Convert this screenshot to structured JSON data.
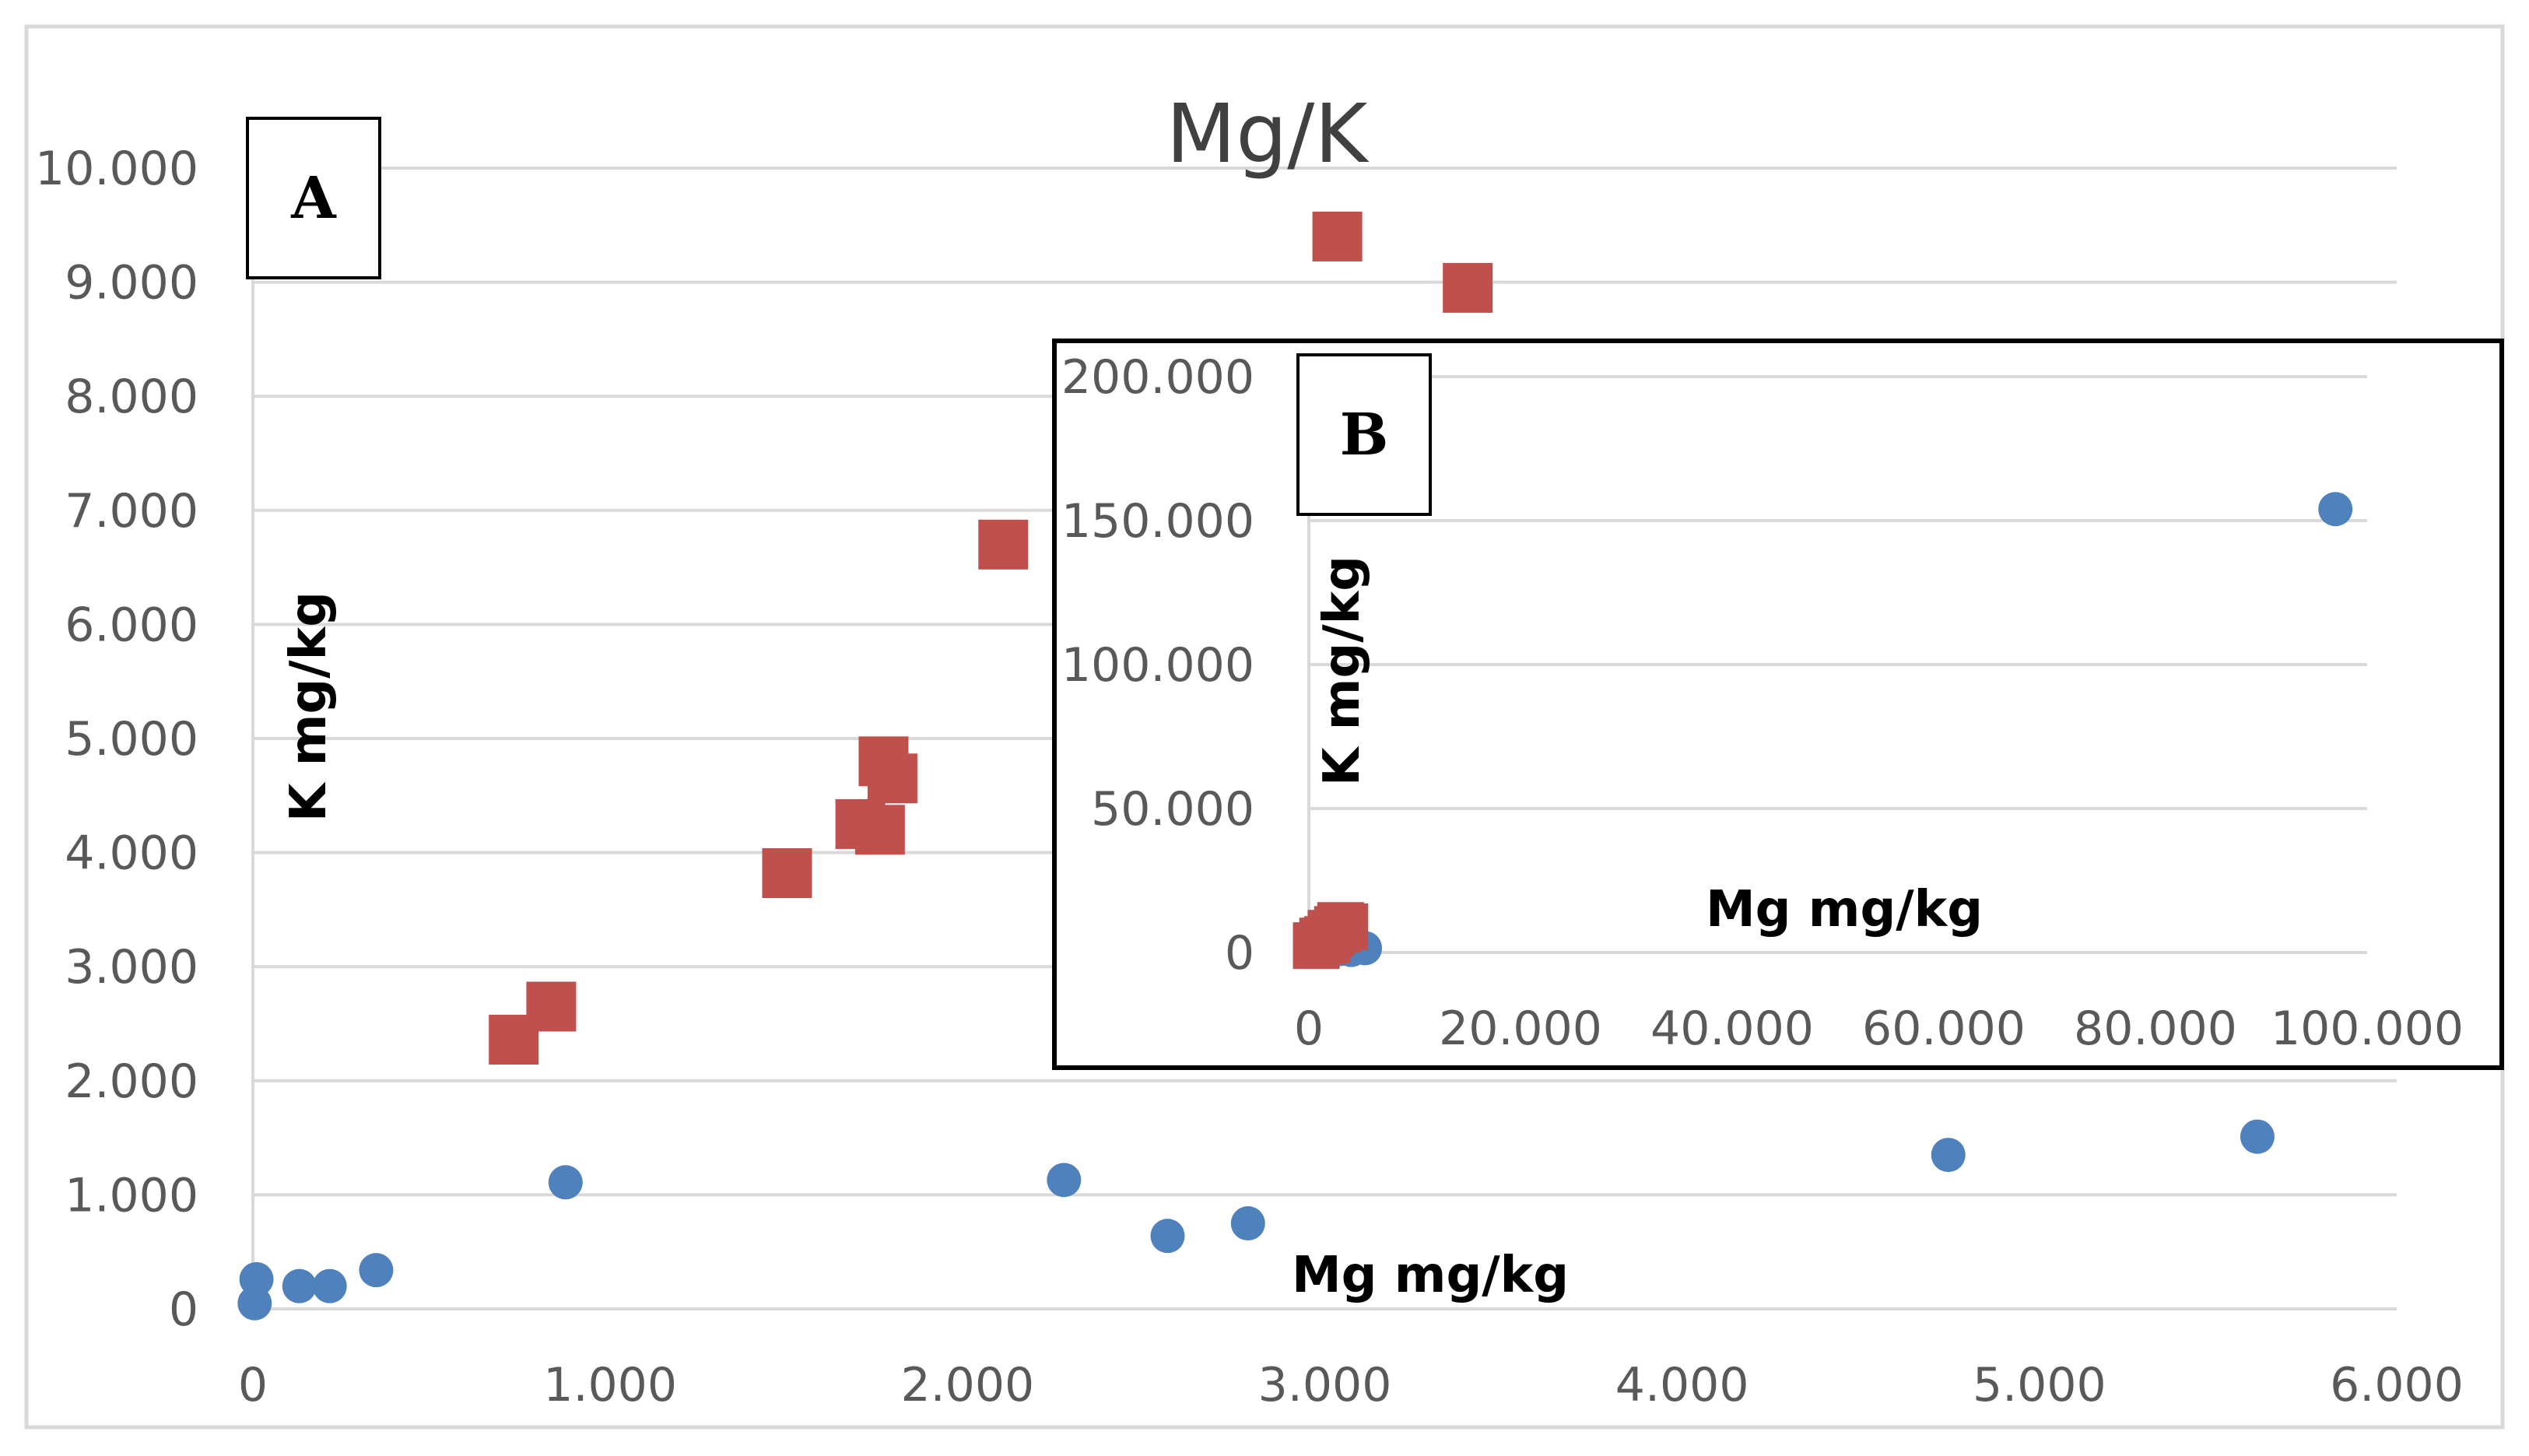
{
  "colors": {
    "series_a": "#4f81bd",
    "series_b": "#c0504d",
    "grid": "#d9d9d9",
    "frame": "#d9d9d9",
    "inset_frame": "#000000"
  },
  "chart_data": [
    {
      "id": "main",
      "type": "scatter",
      "title": "Mg/K",
      "panel_label": "A",
      "xlabel": "Mg mg/kg",
      "ylabel": "K mg/kg",
      "xlim": [
        0,
        6000
      ],
      "ylim": [
        0,
        10000
      ],
      "x_ticks": [
        {
          "value": 0,
          "label": "0"
        },
        {
          "value": 1000,
          "label": "1.000"
        },
        {
          "value": 2000,
          "label": "2.000"
        },
        {
          "value": 3000,
          "label": "3.000"
        },
        {
          "value": 4000,
          "label": "4.000"
        },
        {
          "value": 5000,
          "label": "5.000"
        },
        {
          "value": 6000,
          "label": "6.000"
        }
      ],
      "y_ticks": [
        {
          "value": 0,
          "label": "0"
        },
        {
          "value": 1000,
          "label": "1.000"
        },
        {
          "value": 2000,
          "label": "2.000"
        },
        {
          "value": 3000,
          "label": "3.000"
        },
        {
          "value": 4000,
          "label": "4.000"
        },
        {
          "value": 5000,
          "label": "5.000"
        },
        {
          "value": 6000,
          "label": "6.000"
        },
        {
          "value": 7000,
          "label": "7.000"
        },
        {
          "value": 8000,
          "label": "8.000"
        },
        {
          "value": 9000,
          "label": "9.000"
        },
        {
          "value": 10000,
          "label": "10.000"
        }
      ],
      "grid": true,
      "series": [
        {
          "name": "blue circles",
          "marker": "circle",
          "color": "#4f81bd",
          "points": [
            [
              10,
              260
            ],
            [
              5,
              50
            ],
            [
              130,
              200
            ],
            [
              215,
              200
            ],
            [
              345,
              340
            ],
            [
              875,
              1110
            ],
            [
              2270,
              1130
            ],
            [
              2560,
              640
            ],
            [
              2785,
              750
            ],
            [
              4745,
              1350
            ],
            [
              5610,
              1510
            ]
          ]
        },
        {
          "name": "red squares",
          "marker": "square",
          "color": "#c0504d",
          "points": [
            [
              730,
              2360
            ],
            [
              835,
              2650
            ],
            [
              1495,
              3820
            ],
            [
              1700,
              4250
            ],
            [
              1755,
              4200
            ],
            [
              1765,
              4800
            ],
            [
              1790,
              4650
            ],
            [
              2100,
              6700
            ],
            [
              3035,
              9400
            ],
            [
              3400,
              8950
            ]
          ]
        }
      ]
    },
    {
      "id": "inset",
      "type": "scatter",
      "panel_label": "B",
      "xlabel": "Mg mg/kg",
      "ylabel": "K mg/kg",
      "xlim": [
        0,
        100000
      ],
      "ylim": [
        0,
        200000
      ],
      "x_ticks": [
        {
          "value": 0,
          "label": "0"
        },
        {
          "value": 20000,
          "label": "20.000"
        },
        {
          "value": 40000,
          "label": "40.000"
        },
        {
          "value": 60000,
          "label": "60.000"
        },
        {
          "value": 80000,
          "label": "80.000"
        },
        {
          "value": 100000,
          "label": "100.000"
        }
      ],
      "y_ticks": [
        {
          "value": 0,
          "label": "0"
        },
        {
          "value": 50000,
          "label": "50.000"
        },
        {
          "value": 100000,
          "label": "100.000"
        },
        {
          "value": 150000,
          "label": "150.000"
        },
        {
          "value": 200000,
          "label": "200.000"
        }
      ],
      "grid": true,
      "series": [
        {
          "name": "blue circles",
          "marker": "circle",
          "color": "#4f81bd",
          "points": [
            [
              100,
              300
            ],
            [
              600,
              800
            ],
            [
              1200,
              600
            ],
            [
              2300,
              900
            ],
            [
              3000,
              1200
            ],
            [
              4000,
              900
            ],
            [
              5300,
              1500
            ],
            [
              97000,
              154000
            ]
          ]
        },
        {
          "name": "red squares",
          "marker": "square",
          "color": "#c0504d",
          "points": [
            [
              700,
              2400
            ],
            [
              1300,
              4000
            ],
            [
              1750,
              4500
            ],
            [
              2100,
              6700
            ],
            [
              2700,
              8000
            ],
            [
              3000,
              9400
            ],
            [
              3400,
              8950
            ]
          ]
        }
      ]
    }
  ]
}
